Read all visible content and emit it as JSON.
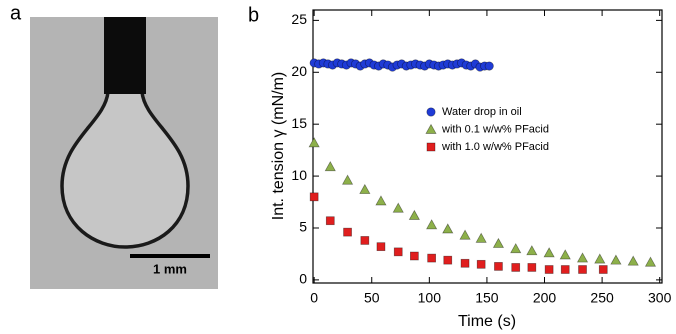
{
  "panel_a": {
    "label": "a",
    "scale_bar": "1 mm"
  },
  "chart_data": {
    "type": "scatter",
    "panel_label": "b",
    "xlabel": "Time (s)",
    "ylabel": "Int. tension γ (mN/m)",
    "xlim": [
      -1,
      302
    ],
    "ylim": [
      -0.3,
      26
    ],
    "xticks": [
      0,
      50,
      100,
      150,
      200,
      250,
      300
    ],
    "yticks": [
      0,
      5,
      10,
      15,
      20,
      25
    ],
    "series": [
      {
        "name": "Water drop in oil",
        "color": "#1f3bd6",
        "marker": "circle",
        "x": [
          0,
          4,
          8,
          12,
          16,
          20,
          24,
          28,
          32,
          36,
          40,
          44,
          48,
          52,
          56,
          60,
          64,
          68,
          72,
          76,
          80,
          84,
          88,
          92,
          96,
          100,
          104,
          108,
          112,
          116,
          120,
          124,
          128,
          132,
          136,
          140,
          144,
          148,
          152
        ],
        "values": [
          20.9,
          20.8,
          20.9,
          20.8,
          20.7,
          20.9,
          20.8,
          20.7,
          20.9,
          20.8,
          20.6,
          20.8,
          20.9,
          20.7,
          20.6,
          20.8,
          20.7,
          20.5,
          20.7,
          20.8,
          20.6,
          20.7,
          20.8,
          20.7,
          20.6,
          20.8,
          20.7,
          20.6,
          20.7,
          20.8,
          20.7,
          20.8,
          20.9,
          20.7,
          20.6,
          20.8,
          20.5,
          20.6,
          20.6
        ]
      },
      {
        "name": "with 0.1 w/w% PFacid",
        "color": "#8db04a",
        "marker": "triangle",
        "x": [
          0,
          14,
          29,
          44,
          58,
          73,
          87,
          102,
          116,
          131,
          145,
          160,
          175,
          189,
          204,
          218,
          233,
          248,
          262,
          277,
          292
        ],
        "values": [
          13.2,
          10.9,
          9.6,
          8.7,
          7.6,
          6.9,
          6.2,
          5.3,
          4.9,
          4.3,
          4.0,
          3.5,
          3.0,
          2.8,
          2.6,
          2.4,
          2.1,
          2.0,
          1.9,
          1.8,
          1.7
        ]
      },
      {
        "name": "with 1.0 w/w% PFacid",
        "color": "#e01e1e",
        "marker": "square",
        "x": [
          0,
          14,
          29,
          44,
          58,
          73,
          87,
          102,
          116,
          131,
          145,
          160,
          175,
          189,
          204,
          218,
          233,
          251
        ],
        "values": [
          8.0,
          5.7,
          4.6,
          3.8,
          3.2,
          2.7,
          2.3,
          2.1,
          1.9,
          1.6,
          1.5,
          1.3,
          1.2,
          1.2,
          1.0,
          1.0,
          1.0,
          1.0
        ]
      }
    ]
  }
}
